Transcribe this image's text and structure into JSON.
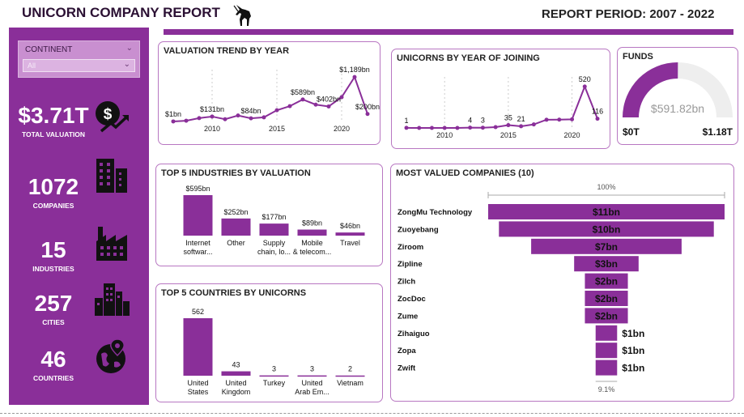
{
  "header": {
    "title": "UNICORN COMPANY REPORT",
    "period": "REPORT PERIOD: 2007 - 2022"
  },
  "filter": {
    "label": "CONTINENT",
    "value": "All"
  },
  "kpis": [
    {
      "value": "$3.71T",
      "label": "TOTAL VALUATION",
      "icon": "dollar-growth-icon"
    },
    {
      "value": "1072",
      "label": "COMPANIES",
      "icon": "buildings-icon"
    },
    {
      "value": "15",
      "label": "INDUSTRIES",
      "icon": "factory-icon"
    },
    {
      "value": "257",
      "label": "CITIES",
      "icon": "city-icon"
    },
    {
      "value": "46",
      "label": "COUNTRIES",
      "icon": "globe-pin-icon"
    }
  ],
  "cards": {
    "valuation_trend": "VALUATION TREND BY YEAR",
    "unicorns_by_year": "UNICORNS BY YEAR OF JOINING",
    "funds": "FUNDS",
    "top_industries": "TOP 5 INDUSTRIES BY VALUATION",
    "most_valued": "MOST VALUED COMPANIES (10)",
    "top_countries": "TOP 5 COUNTRIES BY UNICORNS"
  },
  "colors": {
    "accent": "#8a2f99",
    "gauge_bg": "#eeeeee",
    "card_border": "#b877c2"
  },
  "chart_data": [
    {
      "id": "valuation_trend",
      "type": "line",
      "title": "VALUATION TREND BY YEAR",
      "x": [
        2007,
        2008,
        2009,
        2010,
        2011,
        2012,
        2013,
        2014,
        2015,
        2016,
        2017,
        2018,
        2019,
        2020,
        2021,
        2022
      ],
      "values": [
        1,
        20,
        90,
        131,
        60,
        160,
        84,
        110,
        300,
        410,
        589,
        450,
        402,
        650,
        1189,
        200
      ],
      "xticks": [
        "2010",
        "2015",
        "2020"
      ],
      "xtick_values": [
        2010,
        2015,
        2020
      ],
      "point_labels": [
        {
          "x": 2007,
          "text": "$1bn"
        },
        {
          "x": 2010,
          "text": "$131bn"
        },
        {
          "x": 2013,
          "text": "$84bn"
        },
        {
          "x": 2017,
          "text": "$589bn"
        },
        {
          "x": 2019,
          "text": "$402bn"
        },
        {
          "x": 2021,
          "text": "$1,189bn"
        },
        {
          "x": 2022,
          "text": "$200bn"
        }
      ],
      "ylim": [
        0,
        1300
      ]
    },
    {
      "id": "unicorns_by_year",
      "type": "line",
      "title": "UNICORNS BY YEAR OF JOINING",
      "x": [
        2007,
        2008,
        2009,
        2010,
        2011,
        2012,
        2013,
        2014,
        2015,
        2016,
        2017,
        2018,
        2019,
        2020,
        2021,
        2022
      ],
      "values": [
        1,
        0,
        0,
        0,
        0,
        4,
        3,
        10,
        35,
        21,
        44,
        103,
        104,
        108,
        520,
        116
      ],
      "xticks": [
        "2010",
        "2015",
        "2020"
      ],
      "xtick_values": [
        2010,
        2015,
        2020
      ],
      "point_labels": [
        {
          "x": 2007,
          "text": "1"
        },
        {
          "x": 2012,
          "text": "4"
        },
        {
          "x": 2013,
          "text": "3"
        },
        {
          "x": 2015,
          "text": "35"
        },
        {
          "x": 2016,
          "text": "21"
        },
        {
          "x": 2021,
          "text": "520"
        },
        {
          "x": 2022,
          "text": "116"
        }
      ],
      "ylim": [
        0,
        600
      ]
    },
    {
      "id": "funds",
      "type": "gauge",
      "title": "FUNDS",
      "value": 591.82,
      "value_label": "$591.82bn",
      "min_label": "$0T",
      "max_label": "$1.18T",
      "min": 0,
      "max": 1180
    },
    {
      "id": "top_industries",
      "type": "bar",
      "title": "TOP 5 INDUSTRIES BY VALUATION",
      "categories": [
        "Internet softwar...",
        "Other",
        "Supply chain, lo...",
        "Mobile & telecom...",
        "Travel"
      ],
      "values": [
        595,
        252,
        177,
        89,
        46
      ],
      "labels": [
        "$595bn",
        "$252bn",
        "$177bn",
        "$89bn",
        "$46bn"
      ]
    },
    {
      "id": "top_countries",
      "type": "bar",
      "title": "TOP 5 COUNTRIES BY UNICORNS",
      "categories": [
        "United States",
        "United Kingdom",
        "Turkey",
        "United Arab Em...",
        "Vietnam"
      ],
      "values": [
        562,
        43,
        3,
        3,
        2
      ],
      "labels": [
        "562",
        "43",
        "3",
        "3",
        "2"
      ]
    },
    {
      "id": "most_valued",
      "type": "bar",
      "orientation": "funnel",
      "title": "MOST VALUED COMPANIES (10)",
      "categories": [
        "ZongMu Technology",
        "Zuoyebang",
        "Ziroom",
        "Zipline",
        "Zilch",
        "ZocDoc",
        "Zume",
        "Zihaiguo",
        "Zopa",
        "Zwift"
      ],
      "values": [
        11,
        10,
        7,
        3,
        2,
        2,
        2,
        1,
        1,
        1
      ],
      "labels": [
        "$11bn",
        "$10bn",
        "$7bn",
        "$3bn",
        "$2bn",
        "$2bn",
        "$2bn",
        "$1bn",
        "$1bn",
        "$1bn"
      ],
      "top_percent": "100%",
      "bottom_percent": "9.1%"
    }
  ]
}
